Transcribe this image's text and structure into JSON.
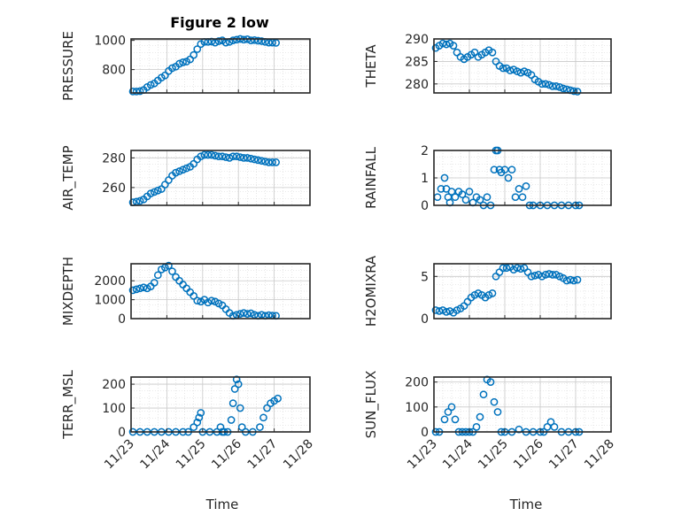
{
  "figure": {
    "title": "Figure 2 low"
  },
  "chart_data": [
    {
      "type": "scatter",
      "ylabel": "PRESSURE",
      "yticks": [
        800,
        1000
      ],
      "ylim": [
        640,
        1010
      ],
      "grid": "on",
      "x": [
        0.05,
        0.15,
        0.25,
        0.35,
        0.45,
        0.55,
        0.65,
        0.75,
        0.85,
        0.95,
        1.05,
        1.15,
        1.25,
        1.35,
        1.45,
        1.55,
        1.65,
        1.75,
        1.85,
        1.95,
        2.05,
        2.15,
        2.25,
        2.35,
        2.45,
        2.55,
        2.65,
        2.75,
        2.85,
        2.95,
        3.05,
        3.15,
        3.25,
        3.35,
        3.45,
        3.55,
        3.65,
        3.75,
        3.85,
        3.95,
        4.05
      ],
      "y": [
        650,
        650,
        652,
        660,
        680,
        695,
        705,
        725,
        745,
        760,
        790,
        810,
        820,
        840,
        850,
        855,
        870,
        900,
        940,
        975,
        990,
        990,
        992,
        985,
        995,
        1000,
        985,
        990,
        1000,
        1005,
        1010,
        1005,
        1008,
        1000,
        1002,
        998,
        995,
        990,
        985,
        985,
        983
      ]
    },
    {
      "type": "scatter",
      "ylabel": "THETA",
      "yticks": [
        280,
        285,
        290
      ],
      "ylim": [
        278,
        290
      ],
      "grid": "on",
      "x": [
        0.05,
        0.15,
        0.25,
        0.35,
        0.45,
        0.55,
        0.65,
        0.75,
        0.85,
        0.95,
        1.05,
        1.15,
        1.25,
        1.35,
        1.45,
        1.55,
        1.65,
        1.75,
        1.85,
        1.95,
        2.05,
        2.15,
        2.25,
        2.35,
        2.45,
        2.55,
        2.65,
        2.75,
        2.85,
        2.95,
        3.05,
        3.15,
        3.25,
        3.35,
        3.45,
        3.55,
        3.65,
        3.75,
        3.85,
        3.95,
        4.05
      ],
      "y": [
        288,
        288.5,
        289,
        288.8,
        289,
        288.5,
        287,
        286,
        285.5,
        286,
        286.5,
        287,
        286,
        286.5,
        287,
        287.5,
        287,
        285,
        284,
        283.5,
        283.5,
        283,
        283.2,
        282.8,
        282.5,
        282.8,
        282.5,
        282,
        281,
        280.5,
        280,
        280,
        279.8,
        279.5,
        279.5,
        279.3,
        279,
        278.8,
        278.6,
        278.4,
        278.3
      ]
    },
    {
      "type": "scatter",
      "ylabel": "AIR_TEMP",
      "yticks": [
        260,
        280
      ],
      "ylim": [
        248,
        285
      ],
      "grid": "on",
      "x": [
        0.05,
        0.15,
        0.25,
        0.35,
        0.45,
        0.55,
        0.65,
        0.75,
        0.85,
        0.95,
        1.05,
        1.15,
        1.25,
        1.35,
        1.45,
        1.55,
        1.65,
        1.75,
        1.85,
        1.95,
        2.05,
        2.15,
        2.25,
        2.35,
        2.45,
        2.55,
        2.65,
        2.75,
        2.85,
        2.95,
        3.05,
        3.15,
        3.25,
        3.35,
        3.45,
        3.55,
        3.65,
        3.75,
        3.85,
        3.95,
        4.05
      ],
      "y": [
        250,
        250.5,
        251,
        252,
        254,
        256,
        257,
        258,
        259,
        262,
        265,
        268,
        270,
        271,
        272,
        273,
        274,
        276,
        279,
        281,
        282,
        282,
        282,
        281.5,
        281,
        281,
        280.5,
        280,
        281,
        281,
        280.5,
        280,
        280,
        279.5,
        279,
        278.5,
        278,
        277.5,
        277,
        277,
        277
      ]
    },
    {
      "type": "scatter",
      "ylabel": "RAINFALL",
      "yticks": [
        0,
        1,
        2
      ],
      "ylim": [
        0,
        2
      ],
      "grid": "on",
      "x": [
        0.1,
        0.2,
        0.3,
        0.35,
        0.4,
        0.45,
        0.5,
        0.6,
        0.7,
        0.8,
        0.9,
        1.0,
        1.1,
        1.2,
        1.3,
        1.4,
        1.5,
        1.6,
        1.7,
        1.75,
        1.8,
        1.85,
        1.9,
        2.0,
        2.1,
        2.2,
        2.3,
        2.4,
        2.5,
        2.6,
        2.7,
        2.8,
        3.0,
        3.2,
        3.4,
        3.6,
        3.8,
        4.0,
        4.1
      ],
      "y": [
        0.3,
        0.6,
        1.0,
        0.6,
        0.3,
        0.1,
        0.5,
        0.3,
        0.5,
        0.4,
        0.2,
        0.5,
        0.1,
        0.3,
        0.2,
        0.0,
        0.3,
        0.0,
        1.3,
        2.0,
        2.0,
        1.3,
        1.2,
        1.3,
        1.0,
        1.3,
        0.3,
        0.6,
        0.3,
        0.7,
        0.0,
        0.0,
        0.0,
        0.0,
        0.0,
        0.0,
        0.0,
        0.0,
        0.0
      ]
    },
    {
      "type": "scatter",
      "ylabel": "MIXDEPTH",
      "yticks": [
        0,
        1000,
        2000
      ],
      "ylim": [
        0,
        2900
      ],
      "grid": "on",
      "x": [
        0.05,
        0.15,
        0.25,
        0.35,
        0.45,
        0.55,
        0.65,
        0.75,
        0.85,
        0.95,
        1.05,
        1.15,
        1.25,
        1.35,
        1.45,
        1.55,
        1.65,
        1.75,
        1.85,
        1.95,
        2.05,
        2.15,
        2.25,
        2.35,
        2.45,
        2.55,
        2.65,
        2.75,
        2.85,
        2.95,
        3.05,
        3.15,
        3.25,
        3.35,
        3.45,
        3.55,
        3.65,
        3.75,
        3.85,
        3.95,
        4.05
      ],
      "y": [
        1500,
        1550,
        1600,
        1650,
        1600,
        1700,
        1900,
        2300,
        2600,
        2700,
        2800,
        2500,
        2200,
        2000,
        1800,
        1600,
        1400,
        1200,
        950,
        900,
        1000,
        850,
        950,
        900,
        800,
        700,
        500,
        300,
        150,
        200,
        250,
        300,
        250,
        280,
        200,
        150,
        200,
        150,
        180,
        160,
        150
      ]
    },
    {
      "type": "scatter",
      "ylabel": "H2OMIXRA",
      "yticks": [
        0,
        5
      ],
      "ylim": [
        0,
        6.5
      ],
      "grid": "on",
      "x": [
        0.05,
        0.15,
        0.25,
        0.35,
        0.45,
        0.55,
        0.65,
        0.75,
        0.85,
        0.95,
        1.05,
        1.15,
        1.25,
        1.35,
        1.45,
        1.55,
        1.65,
        1.75,
        1.85,
        1.95,
        2.05,
        2.15,
        2.25,
        2.35,
        2.45,
        2.55,
        2.65,
        2.75,
        2.85,
        2.95,
        3.05,
        3.15,
        3.25,
        3.35,
        3.45,
        3.55,
        3.65,
        3.75,
        3.85,
        3.95,
        4.05
      ],
      "y": [
        1.0,
        0.9,
        1.0,
        0.8,
        0.9,
        0.7,
        1.0,
        1.2,
        1.5,
        2.0,
        2.5,
        2.8,
        3.0,
        2.8,
        2.5,
        2.8,
        3.0,
        5.0,
        5.5,
        6.0,
        6.0,
        6.1,
        5.8,
        6.0,
        5.9,
        6.0,
        5.5,
        5.0,
        5.1,
        5.2,
        5.0,
        5.2,
        5.3,
        5.2,
        5.2,
        5.0,
        4.8,
        4.5,
        4.6,
        4.5,
        4.6
      ]
    },
    {
      "type": "scatter",
      "ylabel": "TERR_MSL",
      "yticks": [
        0,
        100,
        200
      ],
      "ylim": [
        0,
        230
      ],
      "grid": "on",
      "x": [
        0.05,
        0.25,
        0.45,
        0.65,
        0.85,
        1.05,
        1.25,
        1.45,
        1.6,
        1.75,
        1.85,
        1.9,
        1.95,
        2.0,
        2.2,
        2.4,
        2.5,
        2.55,
        2.6,
        2.7,
        2.8,
        2.85,
        2.9,
        2.95,
        3.0,
        3.05,
        3.1,
        3.2,
        3.4,
        3.6,
        3.7,
        3.8,
        3.9,
        4.0,
        4.1
      ],
      "y": [
        0,
        0,
        0,
        0,
        0,
        0,
        0,
        0,
        0,
        20,
        40,
        60,
        80,
        0,
        0,
        0,
        20,
        0,
        0,
        0,
        50,
        120,
        180,
        220,
        200,
        100,
        20,
        0,
        0,
        20,
        60,
        100,
        120,
        130,
        140
      ]
    },
    {
      "type": "scatter",
      "ylabel": "SUN_FLUX",
      "yticks": [
        0,
        100,
        200
      ],
      "ylim": [
        0,
        220
      ],
      "grid": "on",
      "x": [
        0.05,
        0.15,
        0.3,
        0.4,
        0.5,
        0.6,
        0.7,
        0.8,
        0.9,
        1.0,
        1.1,
        1.2,
        1.3,
        1.4,
        1.5,
        1.6,
        1.7,
        1.8,
        1.9,
        2.0,
        2.2,
        2.4,
        2.6,
        2.8,
        3.0,
        3.1,
        3.2,
        3.3,
        3.4,
        3.6,
        3.8,
        4.0,
        4.1
      ],
      "y": [
        0,
        0,
        50,
        80,
        100,
        50,
        0,
        0,
        0,
        0,
        0,
        20,
        60,
        150,
        210,
        200,
        120,
        80,
        0,
        0,
        0,
        10,
        0,
        0,
        0,
        0,
        20,
        40,
        20,
        0,
        0,
        0,
        0
      ]
    }
  ],
  "xaxis": {
    "label": "Time",
    "ticks": [
      "11/23",
      "11/24",
      "11/25",
      "11/26",
      "11/27",
      "11/28"
    ],
    "xlim": [
      0,
      5
    ]
  }
}
